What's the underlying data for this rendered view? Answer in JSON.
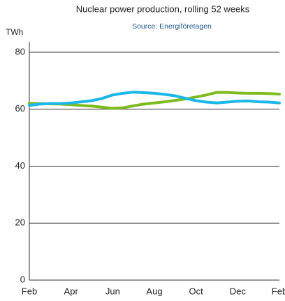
{
  "chart_data": {
    "type": "line",
    "title": "Nuclear power production, rolling 52 weeks",
    "subtitle": "Source: Energiföretagen",
    "y_label": "TWh",
    "categories": [
      "Feb",
      null,
      null,
      null,
      "Apr",
      null,
      null,
      null,
      "Jun",
      null,
      null,
      null,
      "Aug",
      null,
      null,
      null,
      "Oct",
      null,
      null,
      null,
      "Dec",
      null,
      null,
      null,
      "Feb"
    ],
    "series": [
      {
        "color": "#7dbb1f",
        "values": [
          62.1,
          62,
          61.9,
          61.8,
          61.6,
          61.3,
          61.1,
          60.7,
          60.3,
          60.5,
          61.2,
          61.8,
          62.2,
          62.6,
          63.1,
          63.6,
          64.3,
          65,
          65.9,
          65.9,
          65.7,
          65.6,
          65.6,
          65.5,
          65.3
        ]
      },
      {
        "color": "#1ab8e8",
        "values": [
          61.3,
          61.8,
          62,
          62,
          62.2,
          62.6,
          63,
          63.8,
          65,
          65.6,
          66,
          65.8,
          65.6,
          65.2,
          64.7,
          63.8,
          63,
          62.5,
          62.2,
          62.5,
          62.8,
          62.9,
          62.6,
          62.5,
          62.2
        ]
      }
    ],
    "ylim": [
      0,
      80
    ],
    "yticks": [
      0,
      20,
      40,
      60,
      80
    ],
    "grid": true
  }
}
